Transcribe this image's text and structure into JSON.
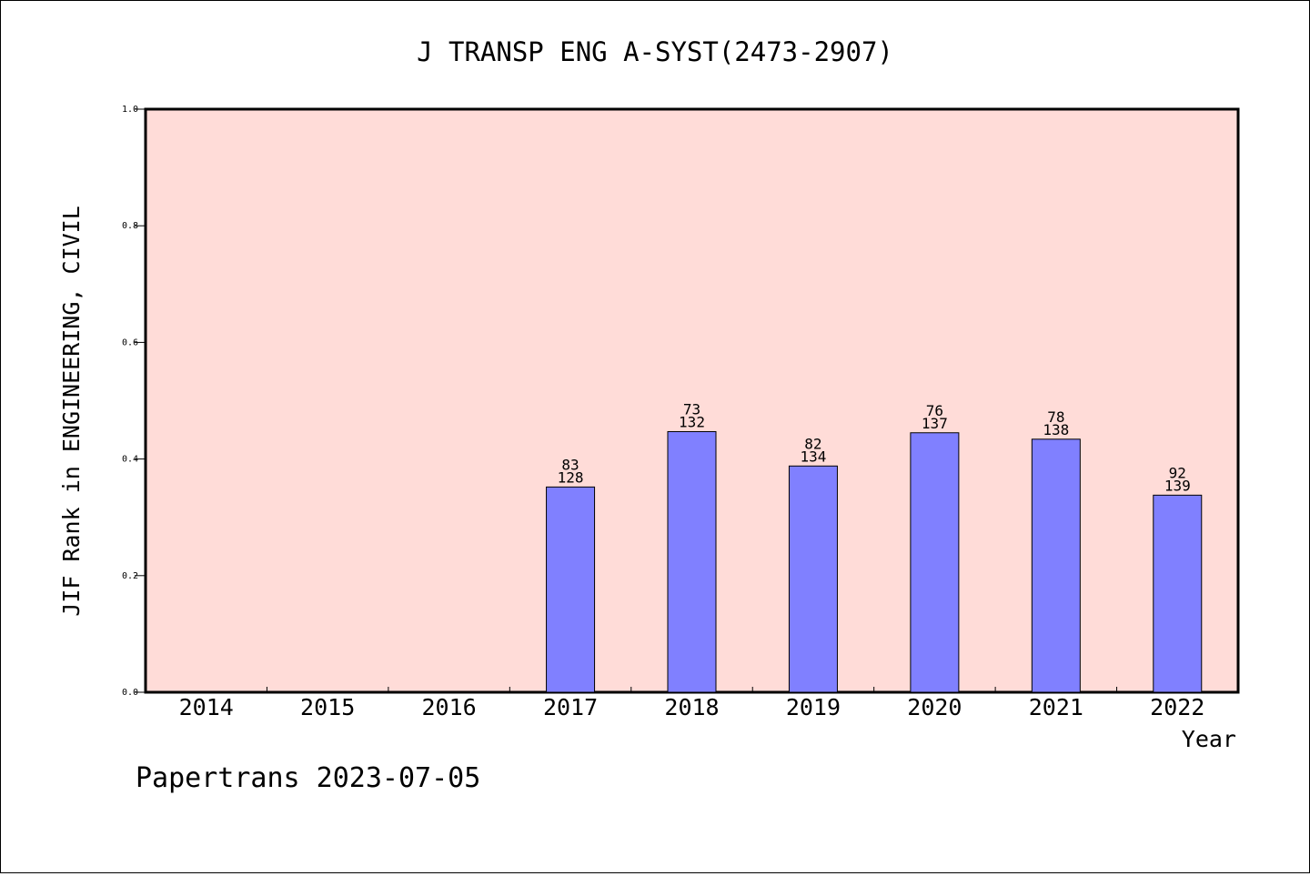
{
  "chart_data": {
    "type": "bar",
    "title": "J TRANSP ENG A-SYST(2473-2907)",
    "xlabel": "Year",
    "ylabel": "JIF Rank in ENGINEERING, CIVIL",
    "categories": [
      "2014",
      "2015",
      "2016",
      "2017",
      "2018",
      "2019",
      "2020",
      "2021",
      "2022"
    ],
    "values": [
      null,
      null,
      null,
      0.352,
      0.447,
      0.388,
      0.445,
      0.434,
      0.338
    ],
    "rank": [
      null,
      null,
      null,
      "83",
      "73",
      "82",
      "76",
      "78",
      "92"
    ],
    "total": [
      null,
      null,
      null,
      "128",
      "132",
      "134",
      "137",
      "138",
      "139"
    ],
    "ylim": [
      0,
      1.0
    ],
    "yticks": [
      "0.0",
      "0.2",
      "0.4",
      "0.6",
      "0.8",
      "1.0"
    ],
    "grid": false,
    "plot_background": "#ffdcd8",
    "bar_color": "#8080ff"
  },
  "footer": {
    "credit": "Papertrans 2023-07-05"
  }
}
